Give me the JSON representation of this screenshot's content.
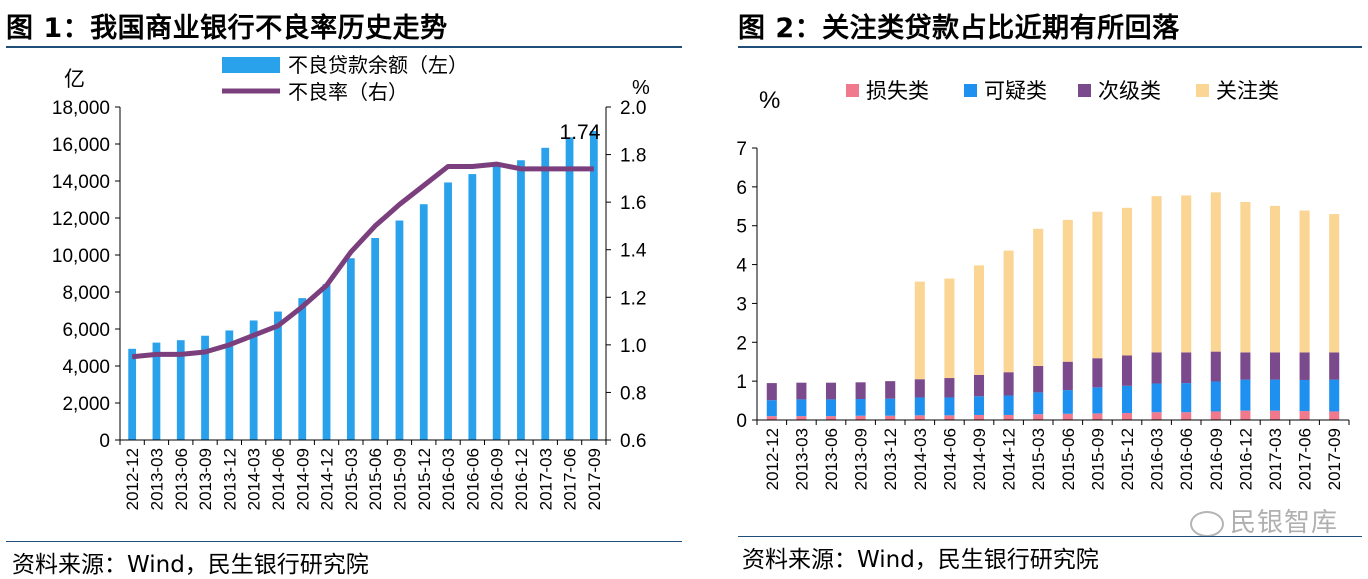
{
  "left": {
    "title": "图 1：我国商业银行不良率历史走势",
    "source": "资料来源：Wind，民生银行研究院",
    "chart_data": {
      "type": "bar+line",
      "y_left_unit": "亿",
      "y_right_unit": "%",
      "ylim_left": [
        0,
        18000
      ],
      "yticks_left": [
        "0",
        "2,000",
        "4,000",
        "6,000",
        "8,000",
        "10,000",
        "12,000",
        "14,000",
        "16,000",
        "18,000"
      ],
      "ylim_right": [
        0.6,
        2.0
      ],
      "yticks_right": [
        "0.6",
        "0.8",
        "1.0",
        "1.2",
        "1.4",
        "1.6",
        "1.8",
        "2.0"
      ],
      "categories": [
        "2012-12",
        "2013-03",
        "2013-06",
        "2013-09",
        "2013-12",
        "2014-03",
        "2014-06",
        "2014-09",
        "2014-12",
        "2015-03",
        "2015-06",
        "2015-09",
        "2015-12",
        "2016-03",
        "2016-06",
        "2016-09",
        "2016-12",
        "2017-03",
        "2017-06",
        "2017-09"
      ],
      "series": [
        {
          "name": "不良贷款余额（左）",
          "type": "bar",
          "axis": "left",
          "color": "#2aa1eb",
          "values": [
            4929,
            5265,
            5395,
            5636,
            5921,
            6461,
            6944,
            7669,
            8426,
            9825,
            10919,
            11863,
            12744,
            13921,
            14373,
            14939,
            15122,
            15795,
            16358,
            16704
          ]
        },
        {
          "name": "不良率（右）",
          "type": "line",
          "axis": "right",
          "color": "#7b3f7e",
          "values": [
            0.95,
            0.96,
            0.96,
            0.97,
            1.0,
            1.04,
            1.08,
            1.16,
            1.25,
            1.39,
            1.5,
            1.59,
            1.67,
            1.75,
            1.75,
            1.76,
            1.74,
            1.74,
            1.74,
            1.74
          ]
        }
      ],
      "annotation": "1.74"
    }
  },
  "right": {
    "title": "图 2：关注类贷款占比近期有所回落",
    "source": "资料来源：Wind，民生银行研究院",
    "watermark": "民银智库",
    "chart_data": {
      "type": "stacked-bar",
      "y_unit": "%",
      "ylim": [
        0,
        7
      ],
      "yticks": [
        "0",
        "1",
        "2",
        "3",
        "4",
        "5",
        "6",
        "7"
      ],
      "categories": [
        "2012-12",
        "2013-03",
        "2013-06",
        "2013-09",
        "2013-12",
        "2014-03",
        "2014-06",
        "2014-09",
        "2014-12",
        "2015-03",
        "2015-06",
        "2015-09",
        "2015-12",
        "2016-03",
        "2016-06",
        "2016-09",
        "2016-12",
        "2017-03",
        "2017-06",
        "2017-09"
      ],
      "series": [
        {
          "name": "损失类",
          "color": "#f0798d",
          "values": [
            0.1,
            0.1,
            0.1,
            0.11,
            0.11,
            0.12,
            0.12,
            0.13,
            0.13,
            0.15,
            0.16,
            0.17,
            0.18,
            0.2,
            0.2,
            0.22,
            0.24,
            0.24,
            0.23,
            0.22
          ]
        },
        {
          "name": "可疑类",
          "color": "#1e90f0",
          "values": [
            0.41,
            0.43,
            0.43,
            0.43,
            0.44,
            0.46,
            0.46,
            0.48,
            0.5,
            0.56,
            0.61,
            0.67,
            0.7,
            0.74,
            0.75,
            0.77,
            0.8,
            0.8,
            0.8,
            0.82
          ]
        },
        {
          "name": "次级类",
          "color": "#7b4a8c",
          "values": [
            0.44,
            0.43,
            0.43,
            0.43,
            0.45,
            0.47,
            0.5,
            0.55,
            0.6,
            0.68,
            0.73,
            0.75,
            0.78,
            0.8,
            0.79,
            0.77,
            0.7,
            0.7,
            0.71,
            0.7
          ]
        },
        {
          "name": "关注类",
          "color": "#fbd593",
          "values": [
            0,
            0,
            0,
            0,
            0,
            2.51,
            2.56,
            2.82,
            3.13,
            3.53,
            3.65,
            3.77,
            3.8,
            4.02,
            4.04,
            4.1,
            3.87,
            3.77,
            3.65,
            3.56
          ]
        }
      ]
    }
  }
}
